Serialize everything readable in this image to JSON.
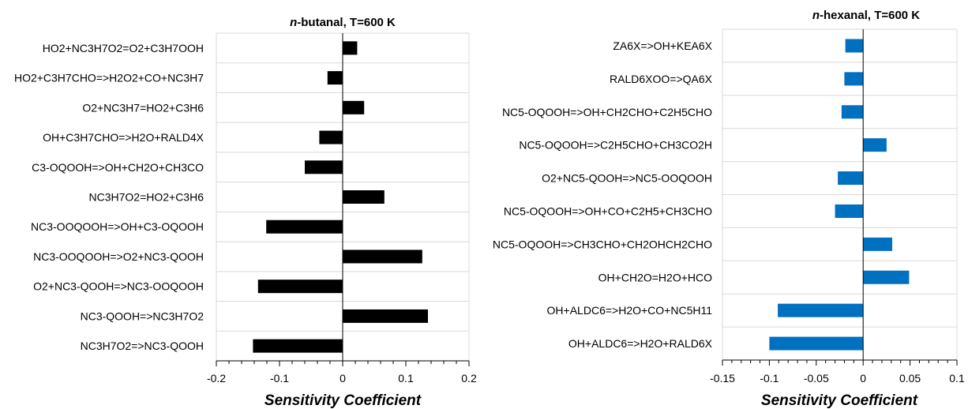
{
  "chart_data": [
    {
      "type": "bar",
      "orientation": "horizontal",
      "title_italic": "n",
      "title_rest": "-butanal, T=600 K",
      "xlabel": "Sensitivity  Coefficient",
      "ylabel": "",
      "xlim": [
        -0.2,
        0.2
      ],
      "xticks": [
        "-0.2",
        "-0.1",
        "0",
        "0.1",
        "0.2"
      ],
      "xtick_values": [
        -0.2,
        -0.1,
        0,
        0.1,
        0.2
      ],
      "grid": "horizontal",
      "legend": "none",
      "bar_color": "#000000",
      "categories": [
        "HO2+NC3H7O2=O2+C3H7OOH",
        "HO2+C3H7CHO=>H2O2+CO+NC3H7",
        "O2+NC3H7=HO2+C3H6",
        "OH+C3H7CHO=>H2O+RALD4X",
        "C3-OQOOH=>OH+CH2O+CH3CO",
        "NC3H7O2=HO2+C3H6",
        "NC3-OOQOOH=>OH+C3-OQOOH",
        "NC3-OOQOOH=>O2+NC3-QOOH",
        "O2+NC3-QOOH=>NC3-OOQOOH",
        "NC3-QOOH=>NC3H7O2",
        "NC3H7O2=>NC3-QOOH"
      ],
      "values": [
        0.023,
        -0.024,
        0.034,
        -0.037,
        -0.06,
        0.066,
        -0.121,
        0.126,
        -0.134,
        0.135,
        -0.142
      ]
    },
    {
      "type": "bar",
      "orientation": "horizontal",
      "title_italic": "n",
      "title_rest": "-hexanal, T=600 K",
      "xlabel": "Sensitivity  Coefficient",
      "ylabel": "",
      "xlim": [
        -0.15,
        0.1
      ],
      "xticks": [
        "-0.15",
        "-0.1",
        "-0.05",
        "0",
        "0.05",
        "0.1"
      ],
      "xtick_values": [
        -0.15,
        -0.1,
        -0.05,
        0,
        0.05,
        0.1
      ],
      "grid": "horizontal",
      "legend": "none",
      "bar_color": "#0070c0",
      "categories": [
        "ZA6X=>OH+KEA6X",
        "RALD6XOO=>QA6X",
        "NC5-OQOOH=>OH+CH2CHO+C2H5CHO",
        "NC5-OQOOH=>C2H5CHO+CH3CO2H",
        "O2+NC5-QOOH=>NC5-OOQOOH",
        "NC5-OQOOH=>OH+CO+C2H5+CH3CHO",
        "NC5-OQOOH=>CH3CHO+CH2OHCH2CHO",
        "OH+CH2O=H2O+HCO",
        "OH+ALDC6=>H2O+CO+NC5H11",
        "OH+ALDC6=>H2O+RALD6X"
      ],
      "values": [
        -0.019,
        -0.02,
        -0.023,
        0.025,
        -0.027,
        -0.03,
        0.031,
        0.049,
        -0.091,
        -0.1
      ]
    }
  ]
}
